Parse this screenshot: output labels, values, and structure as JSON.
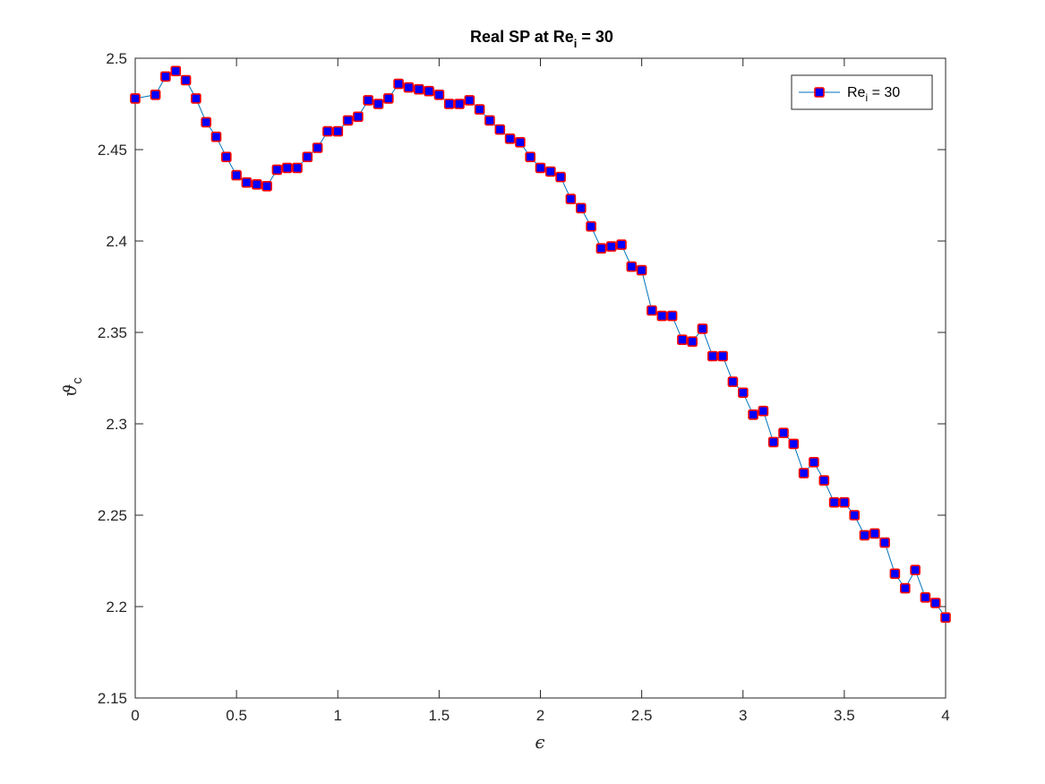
{
  "chart_data": {
    "type": "line",
    "title_main": "Real SP at Re",
    "title_sub": "i",
    "title_tail": " = 30",
    "xlabel": "ϵ",
    "ylabel_main": "ϑ",
    "ylabel_sub": "c",
    "xlim": [
      0,
      4
    ],
    "ylim": [
      2.15,
      2.5
    ],
    "xticks": [
      0,
      0.5,
      1,
      1.5,
      2,
      2.5,
      3,
      3.5,
      4
    ],
    "xtick_labels": [
      "0",
      "0.5",
      "1",
      "1.5",
      "2",
      "2.5",
      "3",
      "3.5",
      "4"
    ],
    "yticks": [
      2.15,
      2.2,
      2.25,
      2.3,
      2.35,
      2.4,
      2.45,
      2.5
    ],
    "ytick_labels": [
      "2.15",
      "2.2",
      "2.25",
      "2.3",
      "2.35",
      "2.4",
      "2.45",
      "2.5"
    ],
    "grid": false,
    "legend_position": "top-right",
    "colors": {
      "line": "#0072BD",
      "marker_edge": "#FF0000",
      "marker_face": "#0000FF",
      "axes": "#262626"
    },
    "series": [
      {
        "legend_main": "Re",
        "legend_sub": "i",
        "legend_tail": " = 30",
        "x": [
          0,
          0.1,
          0.15,
          0.2,
          0.25,
          0.3,
          0.35,
          0.4,
          0.45,
          0.5,
          0.55,
          0.6,
          0.65,
          0.7,
          0.75,
          0.8,
          0.85,
          0.9,
          0.95,
          1,
          1.05,
          1.1,
          1.15,
          1.2,
          1.25,
          1.3,
          1.35,
          1.4,
          1.45,
          1.5,
          1.55,
          1.6,
          1.65,
          1.7,
          1.75,
          1.8,
          1.85,
          1.9,
          1.95,
          2,
          2.05,
          2.1,
          2.15,
          2.2,
          2.25,
          2.3,
          2.35,
          2.4,
          2.45,
          2.5,
          2.55,
          2.6,
          2.65,
          2.7,
          2.75,
          2.8,
          2.85,
          2.9,
          2.95,
          3,
          3.05,
          3.1,
          3.15,
          3.2,
          3.25,
          3.3,
          3.35,
          3.4,
          3.45,
          3.5,
          3.55,
          3.6,
          3.65,
          3.7,
          3.75,
          3.8,
          3.85,
          3.9,
          3.95,
          4
        ],
        "y": [
          2.478,
          2.48,
          2.49,
          2.493,
          2.488,
          2.478,
          2.465,
          2.457,
          2.446,
          2.436,
          2.432,
          2.431,
          2.43,
          2.439,
          2.44,
          2.44,
          2.446,
          2.451,
          2.46,
          2.46,
          2.466,
          2.468,
          2.477,
          2.475,
          2.478,
          2.486,
          2.484,
          2.483,
          2.482,
          2.48,
          2.475,
          2.475,
          2.477,
          2.472,
          2.466,
          2.461,
          2.456,
          2.454,
          2.446,
          2.44,
          2.438,
          2.435,
          2.423,
          2.418,
          2.408,
          2.396,
          2.397,
          2.398,
          2.386,
          2.384,
          2.362,
          2.359,
          2.359,
          2.346,
          2.345,
          2.352,
          2.337,
          2.337,
          2.323,
          2.317,
          2.305,
          2.307,
          2.29,
          2.295,
          2.289,
          2.273,
          2.279,
          2.269,
          2.257,
          2.257,
          2.25,
          2.239,
          2.24,
          2.235,
          2.218,
          2.21,
          2.22,
          2.205,
          2.202,
          2.194
        ]
      }
    ]
  }
}
